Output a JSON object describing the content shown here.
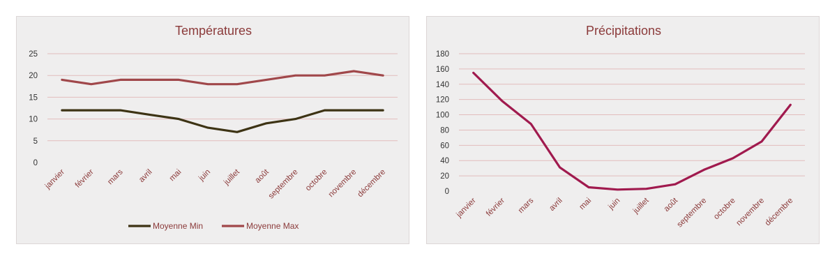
{
  "chart_data": [
    {
      "type": "line",
      "title": "Températures",
      "categories": [
        "janvier",
        "février",
        "mars",
        "avril",
        "mai",
        "juin",
        "juillet",
        "août",
        "septembre",
        "octobre",
        "novembre",
        "décembre"
      ],
      "series": [
        {
          "name": "Moyenne Min",
          "color": "#3d3314",
          "values": [
            12,
            12,
            12,
            11,
            10,
            8,
            7,
            9,
            10,
            12,
            12,
            12
          ]
        },
        {
          "name": "Moyenne Max",
          "color": "#a0474a",
          "values": [
            19,
            18,
            19,
            19,
            19,
            18,
            18,
            19,
            20,
            20,
            21,
            20
          ]
        }
      ],
      "ylim": [
        0,
        25
      ],
      "yticks": [
        0,
        5,
        10,
        15,
        20,
        25
      ],
      "grid": true,
      "legend": "bottom"
    },
    {
      "type": "line",
      "title": "Précipitations",
      "categories": [
        "janvier",
        "février",
        "mars",
        "avril",
        "mai",
        "juin",
        "juillet",
        "août",
        "septembre",
        "octobre",
        "novembre",
        "décembre"
      ],
      "series": [
        {
          "color": "#a01a4e",
          "values": [
            155,
            118,
            88,
            31,
            5,
            2,
            3,
            9,
            28,
            43,
            65,
            113
          ]
        }
      ],
      "ylim": [
        0,
        180
      ],
      "yticks": [
        0,
        20,
        40,
        60,
        80,
        100,
        120,
        140,
        160,
        180
      ],
      "grid": true,
      "legend": "none"
    }
  ]
}
